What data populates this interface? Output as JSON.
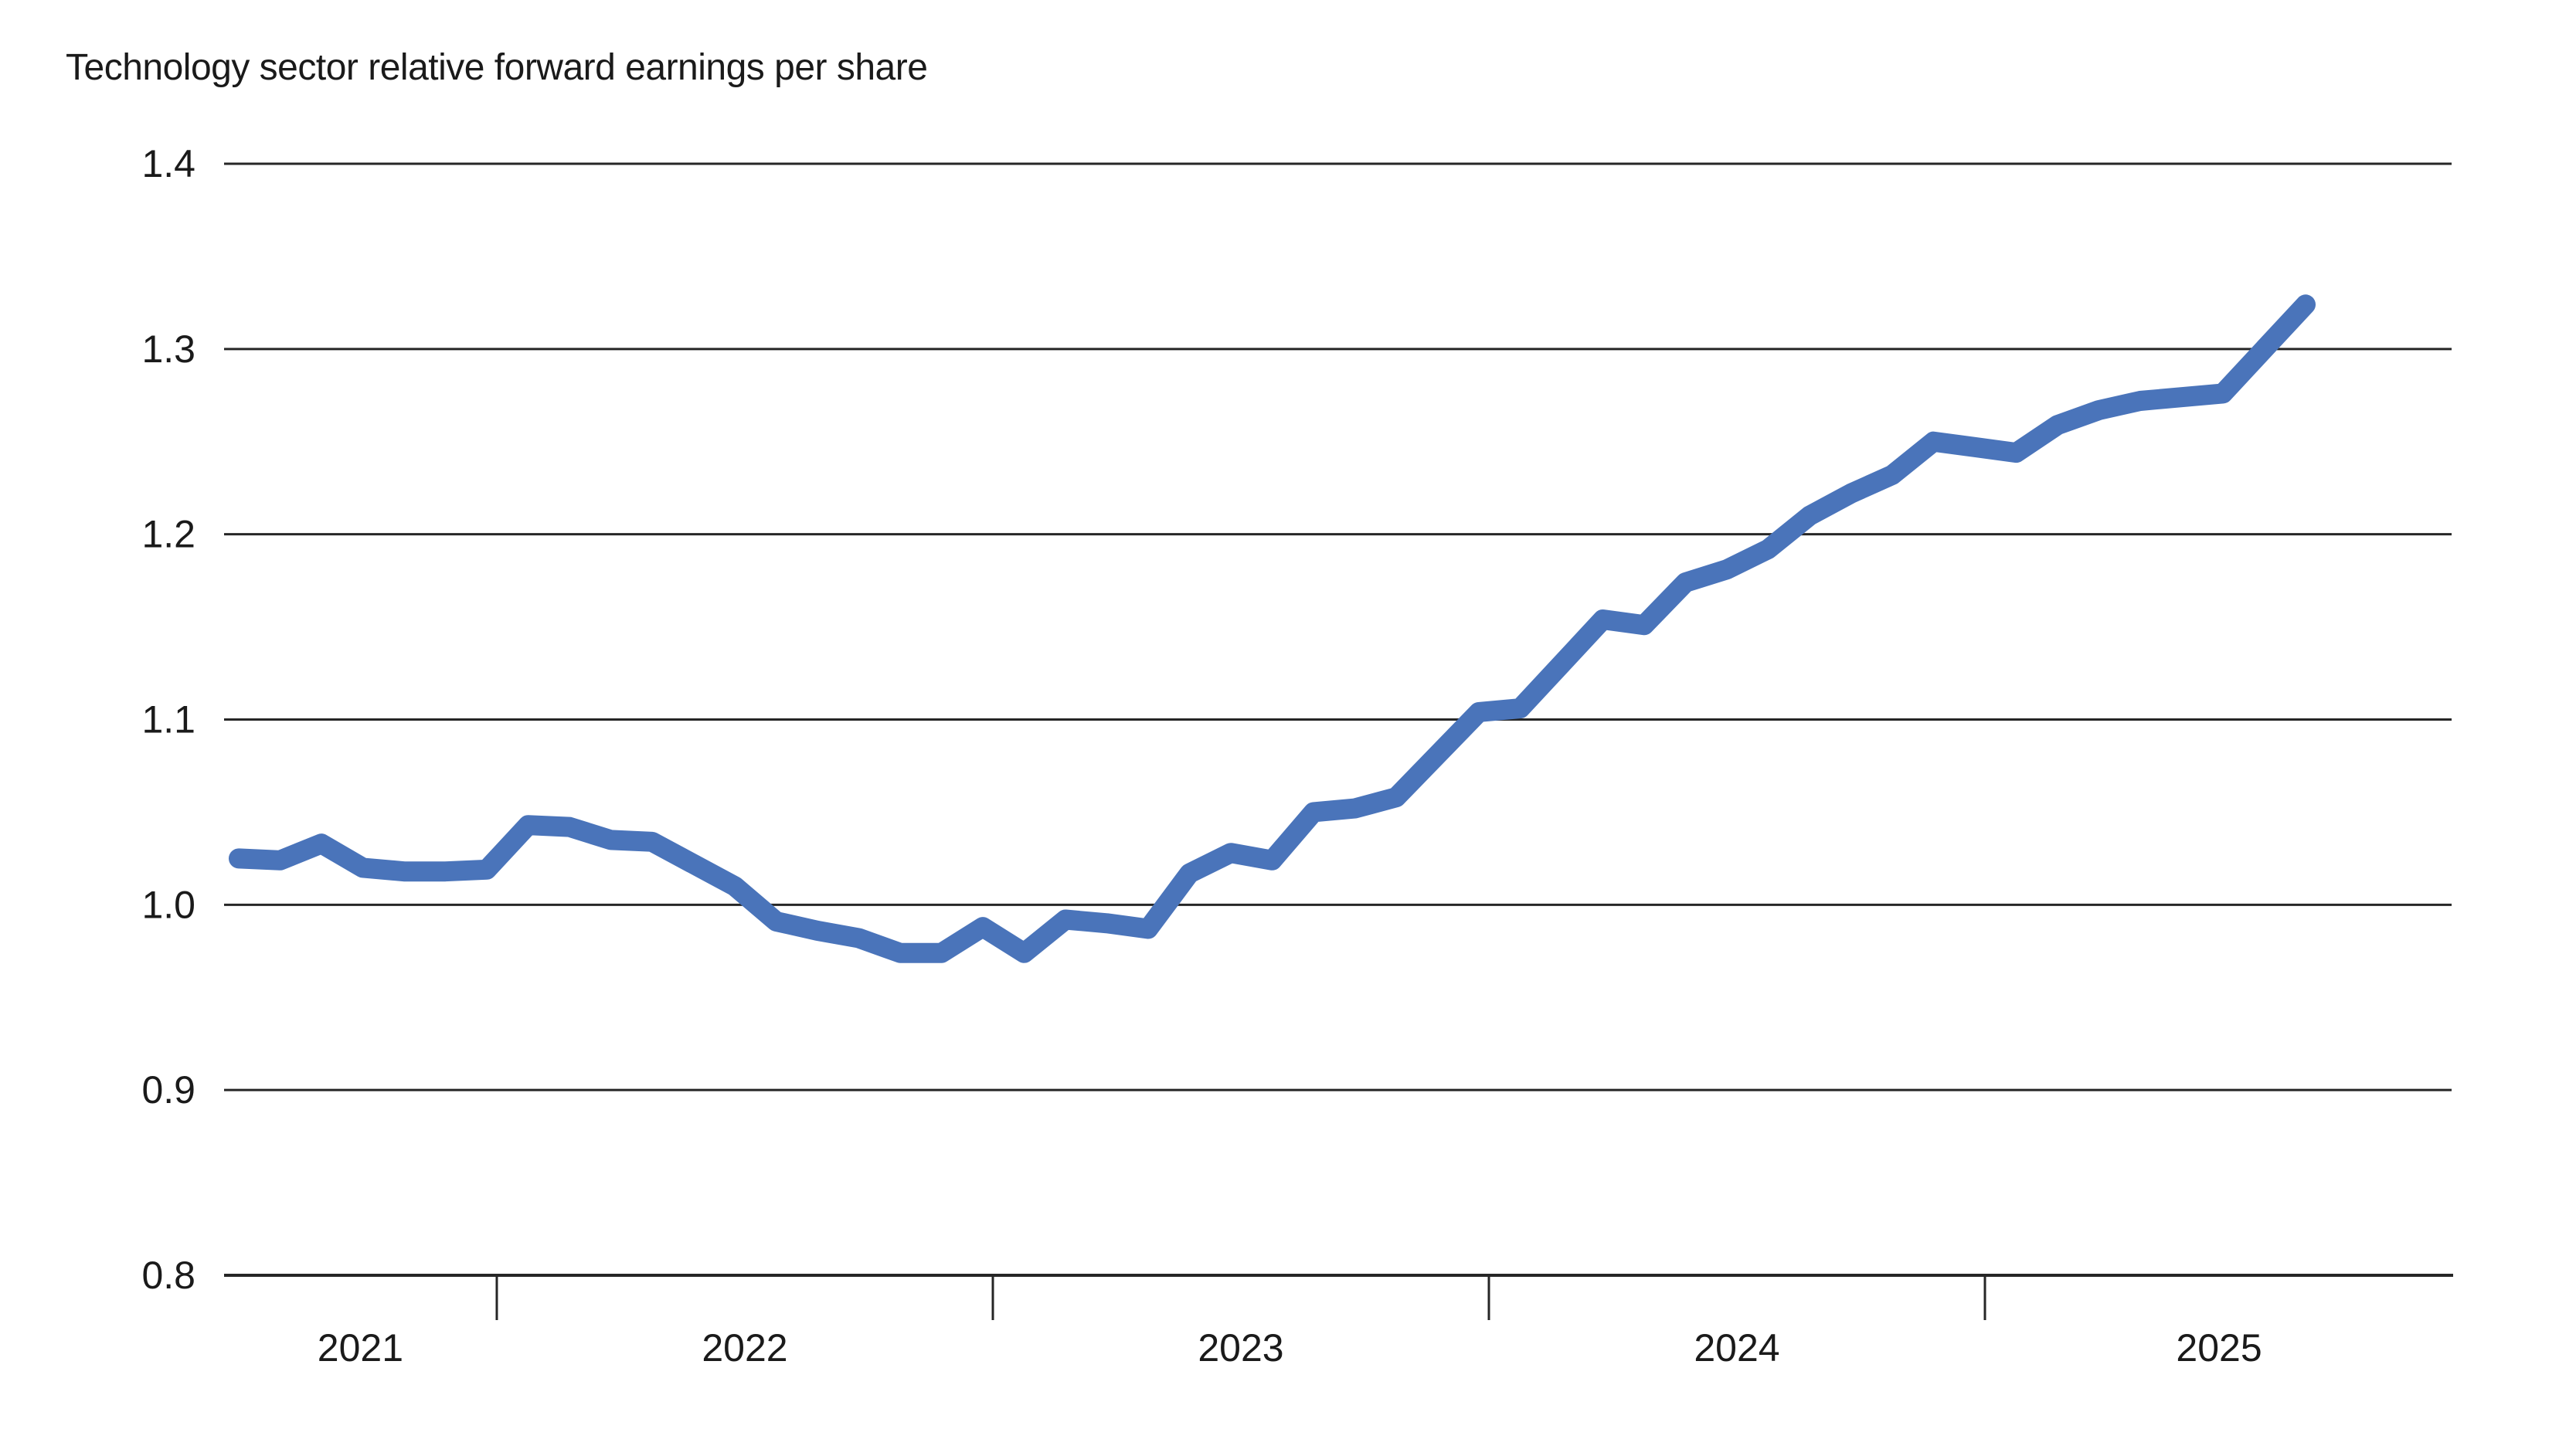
{
  "page": {
    "background": "#ffffff"
  },
  "chart_data": {
    "type": "line",
    "title": "Technology sector relative forward earnings per share",
    "legend_position": "none",
    "grid": true,
    "colors": {
      "line": "#4a74ba",
      "grid": "#262626",
      "axis": "#262626",
      "text": "#1a1a1a"
    },
    "yaxis": {
      "min": 0.8,
      "max": 1.4,
      "ticks": [
        {
          "value": 1.4,
          "label": "1.4"
        },
        {
          "value": 1.3,
          "label": "1.3"
        },
        {
          "value": 1.2,
          "label": "1.2"
        },
        {
          "value": 1.1,
          "label": "1.1"
        },
        {
          "value": 1.0,
          "label": "1.0"
        },
        {
          "value": 0.9,
          "label": "0.9"
        },
        {
          "value": 0.8,
          "label": "0.8"
        }
      ]
    },
    "xaxis": {
      "min": 2021.4502,
      "max": 2025.9439,
      "boundary_ticks": [
        2022,
        2023,
        2024,
        2025
      ],
      "labels": [
        {
          "text": "2021",
          "x": 2021.725
        },
        {
          "text": "2022",
          "x": 2022.5
        },
        {
          "text": "2023",
          "x": 2023.5
        },
        {
          "text": "2024",
          "x": 2024.5
        },
        {
          "text": "2025",
          "x": 2025.472
        }
      ]
    },
    "series": [
      {
        "name": "Technology sector relative forward earnings per share",
        "points": [
          {
            "date": "Jun 2021",
            "x": 2021.4798,
            "y": 1.025
          },
          {
            "date": "Jul 2021",
            "x": 2021.5631,
            "y": 1.024
          },
          {
            "date": "Aug 2021",
            "x": 2021.6464,
            "y": 1.033
          },
          {
            "date": "Sep 2021",
            "x": 2021.7298,
            "y": 1.02
          },
          {
            "date": "Oct 2021",
            "x": 2021.8131,
            "y": 1.018
          },
          {
            "date": "Nov 2021",
            "x": 2021.8964,
            "y": 1.018
          },
          {
            "date": "Dec 2021",
            "x": 2021.9798,
            "y": 1.019
          },
          {
            "date": "Jan 2022",
            "x": 2022.0631,
            "y": 1.043
          },
          {
            "date": "Feb 2022",
            "x": 2022.1464,
            "y": 1.042
          },
          {
            "date": "Mar 2022",
            "x": 2022.2298,
            "y": 1.035
          },
          {
            "date": "Apr 2022",
            "x": 2022.3131,
            "y": 1.034
          },
          {
            "date": "May 2022",
            "x": 2022.3964,
            "y": 1.022
          },
          {
            "date": "Jun 2022",
            "x": 2022.4798,
            "y": 1.01
          },
          {
            "date": "Jul 2022",
            "x": 2022.5631,
            "y": 0.991
          },
          {
            "date": "Aug 2022",
            "x": 2022.6464,
            "y": 0.986
          },
          {
            "date": "Sep 2022",
            "x": 2022.7298,
            "y": 0.982
          },
          {
            "date": "Oct 2022",
            "x": 2022.8131,
            "y": 0.974
          },
          {
            "date": "Nov 2022",
            "x": 2022.8964,
            "y": 0.974
          },
          {
            "date": "Dec 2022",
            "x": 2022.9798,
            "y": 0.988
          },
          {
            "date": "Jan 2023",
            "x": 2023.0631,
            "y": 0.974
          },
          {
            "date": "Feb 2023",
            "x": 2023.1464,
            "y": 0.992
          },
          {
            "date": "Mar 2023",
            "x": 2023.2298,
            "y": 0.99
          },
          {
            "date": "Apr 2023",
            "x": 2023.3131,
            "y": 0.987
          },
          {
            "date": "May 2023",
            "x": 2023.3964,
            "y": 1.017
          },
          {
            "date": "Jun 2023",
            "x": 2023.4798,
            "y": 1.028
          },
          {
            "date": "Jul 2023",
            "x": 2023.5631,
            "y": 1.024
          },
          {
            "date": "Aug 2023",
            "x": 2023.6464,
            "y": 1.05
          },
          {
            "date": "Sep 2023",
            "x": 2023.7298,
            "y": 1.052
          },
          {
            "date": "Oct 2023",
            "x": 2023.8131,
            "y": 1.058
          },
          {
            "date": "Nov 2023",
            "x": 2023.8964,
            "y": 1.081
          },
          {
            "date": "Dec 2023",
            "x": 2023.9798,
            "y": 1.104
          },
          {
            "date": "Jan 2024",
            "x": 2024.0631,
            "y": 1.106
          },
          {
            "date": "Feb 2024",
            "x": 2024.1464,
            "y": 1.13
          },
          {
            "date": "Mar 2024",
            "x": 2024.2298,
            "y": 1.154
          },
          {
            "date": "Apr 2024",
            "x": 2024.3131,
            "y": 1.151
          },
          {
            "date": "May 2024",
            "x": 2024.3964,
            "y": 1.174
          },
          {
            "date": "Jun 2024",
            "x": 2024.4798,
            "y": 1.181
          },
          {
            "date": "Jul 2024",
            "x": 2024.5631,
            "y": 1.192
          },
          {
            "date": "Aug 2024",
            "x": 2024.6464,
            "y": 1.21
          },
          {
            "date": "Sep 2024",
            "x": 2024.7298,
            "y": 1.222
          },
          {
            "date": "Oct 2024",
            "x": 2024.8131,
            "y": 1.232
          },
          {
            "date": "Nov 2024",
            "x": 2024.8964,
            "y": 1.25
          },
          {
            "date": "Dec 2024",
            "x": 2024.9798,
            "y": 1.247
          },
          {
            "date": "Jan 2025",
            "x": 2025.0631,
            "y": 1.244
          },
          {
            "date": "Feb 2025",
            "x": 2025.1464,
            "y": 1.259
          },
          {
            "date": "Mar 2025",
            "x": 2025.2298,
            "y": 1.267
          },
          {
            "date": "Apr 2025",
            "x": 2025.3131,
            "y": 1.272
          },
          {
            "date": "May 2025",
            "x": 2025.3964,
            "y": 1.274
          },
          {
            "date": "Jun 2025",
            "x": 2025.4798,
            "y": 1.276
          },
          {
            "date": "Jul 2025",
            "x": 2025.5631,
            "y": 1.3
          },
          {
            "date": "Aug 2025",
            "x": 2025.6464,
            "y": 1.324
          }
        ]
      }
    ]
  }
}
